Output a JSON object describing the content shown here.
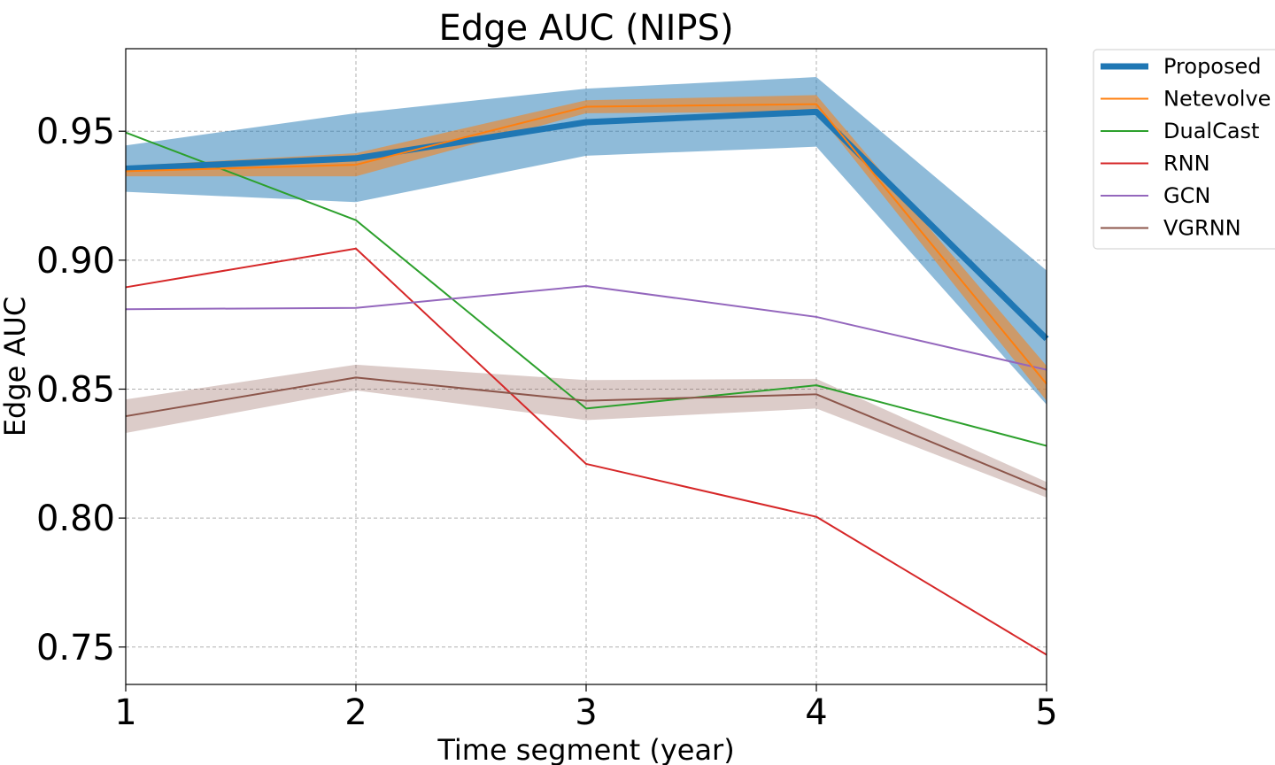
{
  "chart_data": {
    "type": "line",
    "title": "Edge AUC (NIPS)",
    "xlabel": "Time segment (year)",
    "ylabel": "Edge AUC",
    "x": [
      1,
      2,
      3,
      4,
      5
    ],
    "xlim": [
      1,
      5
    ],
    "ylim": [
      0.7355,
      0.982
    ],
    "xticks": [
      1,
      2,
      3,
      4,
      5
    ],
    "yticks": [
      0.75,
      0.8,
      0.85,
      0.9,
      0.95
    ],
    "ytick_labels": [
      "0.75",
      "0.80",
      "0.85",
      "0.90",
      "0.95"
    ],
    "grid": true,
    "legend_position": "outside-top-right",
    "series": [
      {
        "name": "Proposed",
        "color": "#1f77b4",
        "values": [
          0.9355,
          0.9395,
          0.9535,
          0.9575,
          0.8695
        ],
        "band_lower": [
          0.9265,
          0.9225,
          0.9405,
          0.944,
          0.844
        ],
        "band_upper": [
          0.9445,
          0.957,
          0.9665,
          0.971,
          0.896
        ],
        "emphasis": true
      },
      {
        "name": "Netevolve",
        "color": "#ff7f0e",
        "values": [
          0.9345,
          0.937,
          0.9595,
          0.9605,
          0.852
        ],
        "band_lower": [
          0.9325,
          0.9325,
          0.957,
          0.9575,
          0.8455
        ],
        "band_upper": [
          0.9365,
          0.9415,
          0.962,
          0.964,
          0.859
        ]
      },
      {
        "name": "DualCast",
        "color": "#2ca02c",
        "values": [
          0.9495,
          0.9155,
          0.8425,
          0.8515,
          0.828
        ]
      },
      {
        "name": "RNN",
        "color": "#d62728",
        "values": [
          0.8895,
          0.9045,
          0.821,
          0.8005,
          0.747
        ]
      },
      {
        "name": "GCN",
        "color": "#9467bd",
        "values": [
          0.881,
          0.8815,
          0.89,
          0.878,
          0.8575
        ]
      },
      {
        "name": "VGRNN",
        "color": "#8c564b",
        "values": [
          0.8395,
          0.8545,
          0.8455,
          0.848,
          0.811
        ],
        "band_lower": [
          0.833,
          0.8495,
          0.838,
          0.8425,
          0.808
        ],
        "band_upper": [
          0.846,
          0.8595,
          0.8535,
          0.854,
          0.814
        ]
      }
    ]
  }
}
